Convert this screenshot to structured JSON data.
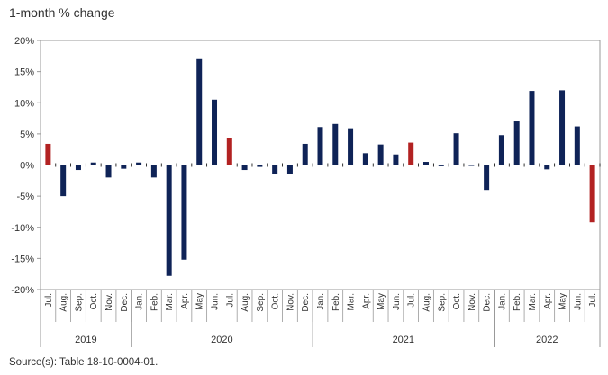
{
  "header": {
    "title": "1-month % change"
  },
  "footer": {
    "source": "Source(s): Table 18-10-0004-01."
  },
  "colors": {
    "highlight": "#B22222",
    "normal": "#0F2357",
    "axis": "#000000",
    "frame": "#999999"
  },
  "chart_data": {
    "type": "bar",
    "title": "1-month % change",
    "xlabel": "",
    "ylabel": "",
    "ylim": [
      -20,
      20
    ],
    "yticks": [
      -20,
      -15,
      -10,
      -5,
      0,
      5,
      10,
      15,
      20
    ],
    "ytick_labels": [
      "-20%",
      "-15%",
      "-10%",
      "-5%",
      "0%",
      "5%",
      "10%",
      "15%",
      "20%"
    ],
    "grid": false,
    "legend": "none",
    "categories": [
      "Jul.",
      "Aug.",
      "Sep.",
      "Oct.",
      "Nov.",
      "Dec.",
      "Jan.",
      "Feb.",
      "Mar.",
      "Apr.",
      "May",
      "Jun.",
      "Jul.",
      "Aug.",
      "Sep.",
      "Oct.",
      "Nov.",
      "Dec.",
      "Jan.",
      "Feb.",
      "Mar.",
      "Apr.",
      "May",
      "Jun.",
      "Jul.",
      "Aug.",
      "Sep.",
      "Oct.",
      "Nov.",
      "Dec.",
      "Jan.",
      "Feb.",
      "Mar.",
      "Apr.",
      "May",
      "Jun.",
      "Jul."
    ],
    "years": [
      {
        "label": "2019",
        "count": 6
      },
      {
        "label": "2020",
        "count": 12
      },
      {
        "label": "2021",
        "count": 12
      },
      {
        "label": "2022",
        "count": 7
      }
    ],
    "values": [
      3.4,
      -5.0,
      -0.8,
      0.4,
      -2.0,
      -0.6,
      0.4,
      -2.0,
      -17.8,
      -15.2,
      17.0,
      10.5,
      4.4,
      -0.8,
      -0.3,
      -1.5,
      -1.5,
      3.4,
      6.1,
      6.6,
      5.9,
      1.9,
      3.3,
      1.7,
      3.6,
      0.5,
      -0.2,
      5.1,
      -0.1,
      -4.0,
      4.8,
      7.0,
      11.9,
      -0.7,
      12.0,
      6.2,
      -9.2
    ],
    "highlight": [
      true,
      false,
      false,
      false,
      false,
      false,
      false,
      false,
      false,
      false,
      false,
      false,
      true,
      false,
      false,
      false,
      false,
      false,
      false,
      false,
      false,
      false,
      false,
      false,
      true,
      false,
      false,
      false,
      false,
      false,
      false,
      false,
      false,
      false,
      false,
      false,
      true
    ]
  }
}
